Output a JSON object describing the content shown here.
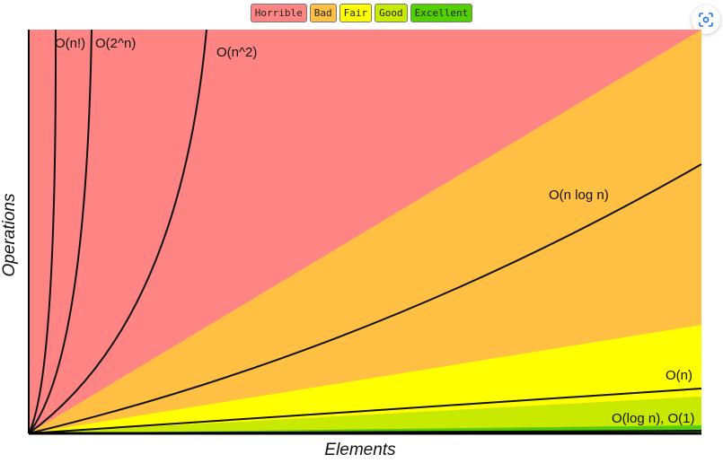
{
  "chart_data": {
    "type": "area",
    "title": "",
    "xlabel": "Elements",
    "ylabel": "Operations",
    "legend": {
      "placement": "top-center",
      "entries": [
        {
          "label": "Horrible",
          "color": "#ff8585"
        },
        {
          "label": "Bad",
          "color": "#ffc043"
        },
        {
          "label": "Fair",
          "color": "#ffff00"
        },
        {
          "label": "Good",
          "color": "#c8ea00"
        },
        {
          "label": "Excellent",
          "color": "#53d000"
        }
      ]
    },
    "grid": false,
    "regions": [
      {
        "name": "Horrible",
        "color": "#ff8585"
      },
      {
        "name": "Bad",
        "color": "#ffc043"
      },
      {
        "name": "Fair",
        "color": "#ffff00"
      },
      {
        "name": "Good",
        "color": "#c8ea00"
      },
      {
        "name": "Excellent",
        "color": "#53d000"
      }
    ],
    "series": [
      {
        "name": "O(n!)"
      },
      {
        "name": "O(2^n)"
      },
      {
        "name": "O(n^2)"
      },
      {
        "name": "O(n log n)"
      },
      {
        "name": "O(n)"
      },
      {
        "name": "O(log n), O(1)"
      }
    ]
  }
}
